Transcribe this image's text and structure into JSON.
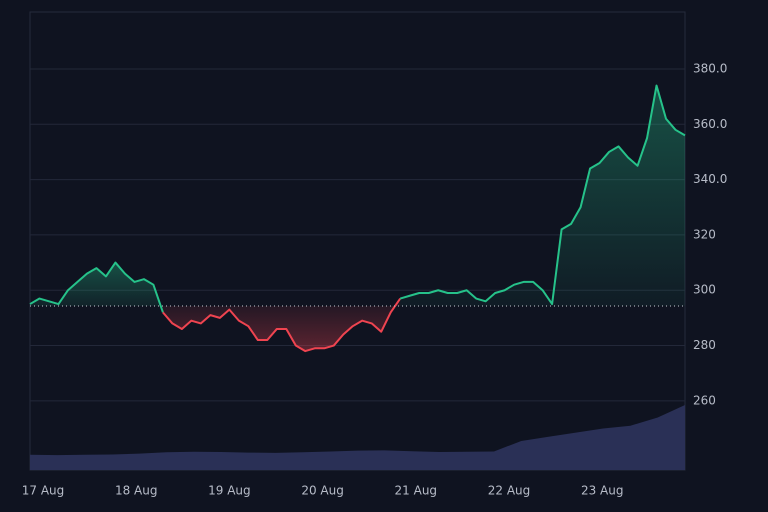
{
  "chart_data": {
    "type": "baseline",
    "x_labels": [
      "17 Aug",
      "18 Aug",
      "19 Aug",
      "20 Aug",
      "21 Aug",
      "22 Aug",
      "23 Aug"
    ],
    "baseline": 294.3,
    "up_color": "#26c28a",
    "down_color": "#ef4450",
    "series": [
      {
        "values": [
          295,
          297,
          296,
          295,
          300,
          303,
          306,
          308,
          305,
          310,
          306,
          303,
          304,
          302,
          292,
          288,
          286,
          289,
          288,
          291,
          290,
          293,
          289,
          287,
          282,
          282,
          286,
          286,
          280,
          278,
          279,
          279,
          280,
          284,
          287,
          289,
          288,
          285,
          292,
          297,
          298,
          299,
          299,
          300,
          299,
          299,
          300,
          297,
          296,
          299,
          300,
          302,
          303,
          303,
          300,
          295,
          322,
          324,
          330,
          344,
          346,
          350,
          352,
          348,
          345,
          355,
          374,
          362,
          358,
          356
        ]
      },
      {
        "type": "area",
        "color": "#2a3056",
        "values": [
          240.5,
          240.4,
          240.5,
          240.6,
          240.9,
          241.4,
          241.6,
          241.5,
          241.3,
          241.2,
          241.4,
          241.7,
          242.0,
          242.1,
          241.8,
          241.5,
          241.6,
          241.7,
          245.5,
          247.0,
          248.5,
          250.0,
          251.0,
          254.0,
          258.5
        ]
      }
    ],
    "ylim": [
      235,
      400.6
    ],
    "yticks": [
      260,
      280,
      300,
      320,
      {
        "value": 340,
        "label": "340.0"
      },
      {
        "value": 360,
        "label": "360.0"
      },
      {
        "value": 380,
        "label": "380.0"
      }
    ],
    "grid": true
  }
}
